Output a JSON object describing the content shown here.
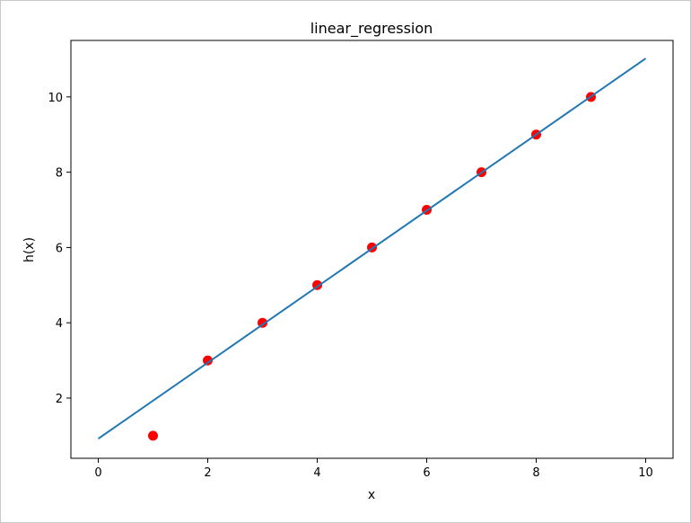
{
  "chart_data": {
    "type": "scatter",
    "title": "linear_regression",
    "xlabel": "x",
    "ylabel": "h(x)",
    "xlim": [
      -0.5,
      10.5
    ],
    "ylim": [
      0.4,
      11.5
    ],
    "xticks": [
      0,
      2,
      4,
      6,
      8,
      10
    ],
    "yticks": [
      2,
      4,
      6,
      8,
      10
    ],
    "grid": false,
    "series": [
      {
        "kind": "scatter",
        "color": "#ff0000",
        "points": [
          {
            "x": 1,
            "y": 1
          },
          {
            "x": 2,
            "y": 3
          },
          {
            "x": 3,
            "y": 4
          },
          {
            "x": 4,
            "y": 5
          },
          {
            "x": 5,
            "y": 6
          },
          {
            "x": 6,
            "y": 7
          },
          {
            "x": 7,
            "y": 8
          },
          {
            "x": 8,
            "y": 9
          },
          {
            "x": 9,
            "y": 10
          }
        ]
      },
      {
        "kind": "line",
        "color": "#1f77b4",
        "points": [
          {
            "x": 0,
            "y": 0.92
          },
          {
            "x": 10,
            "y": 11.02
          }
        ]
      }
    ]
  }
}
